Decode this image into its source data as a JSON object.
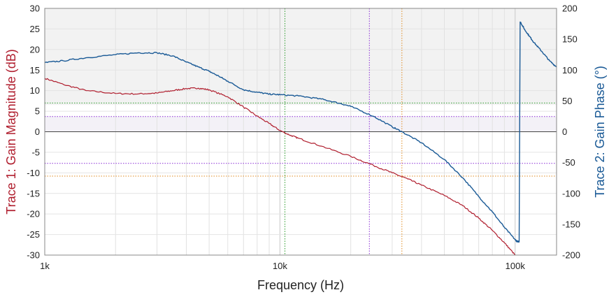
{
  "chart_data": {
    "type": "line",
    "xlabel": "Frequency (Hz)",
    "ylabel_left": "Trace 1: Gain Magnitude (dB)",
    "ylabel_right": "Trace 2: Gain Phase (°)",
    "xscale": "log",
    "xlim": [
      1000,
      150000
    ],
    "ylim_left": [
      -30,
      30
    ],
    "ylim_right": [
      -200,
      200
    ],
    "x_ticks": [
      {
        "value": 1000,
        "label": "1k"
      },
      {
        "value": 10000,
        "label": "10k"
      },
      {
        "value": 100000,
        "label": "100k"
      }
    ],
    "y_left_ticks": [
      {
        "value": 30,
        "label": "30"
      },
      {
        "value": 25,
        "label": "25"
      },
      {
        "value": 20,
        "label": "20"
      },
      {
        "value": 15,
        "label": "15"
      },
      {
        "value": 10,
        "label": "10"
      },
      {
        "value": 5,
        "label": "5"
      },
      {
        "value": 0,
        "label": "0"
      },
      {
        "value": -5,
        "label": "-5"
      },
      {
        "value": -10,
        "label": "-10"
      },
      {
        "value": -15,
        "label": "-15"
      },
      {
        "value": -20,
        "label": "-20"
      },
      {
        "value": -25,
        "label": "-25"
      },
      {
        "value": -30,
        "label": "-30"
      }
    ],
    "y_right_ticks": [
      {
        "value": 200,
        "label": "200"
      },
      {
        "value": 150,
        "label": "150"
      },
      {
        "value": 100,
        "label": "100"
      },
      {
        "value": 50,
        "label": "50"
      },
      {
        "value": 0,
        "label": "0"
      },
      {
        "value": -50,
        "label": "-50"
      },
      {
        "value": -100,
        "label": "-100"
      },
      {
        "value": -150,
        "label": "-150"
      },
      {
        "value": -200,
        "label": "-200"
      }
    ],
    "series": [
      {
        "color": "#b01e2e",
        "axis": "left",
        "points": [
          [
            1000,
            13
          ],
          [
            1200,
            11.5
          ],
          [
            1500,
            10
          ],
          [
            2000,
            9.3
          ],
          [
            2500,
            9.2
          ],
          [
            3000,
            9.4
          ],
          [
            3500,
            10
          ],
          [
            4000,
            10.5
          ],
          [
            4500,
            10.6
          ],
          [
            5000,
            10.2
          ],
          [
            6000,
            8.5
          ],
          [
            7000,
            6
          ],
          [
            8000,
            3.8
          ],
          [
            9000,
            2
          ],
          [
            10000,
            0.3
          ],
          [
            11000,
            -0.8
          ],
          [
            12000,
            -1.6
          ],
          [
            15000,
            -3.5
          ],
          [
            20000,
            -6
          ],
          [
            25000,
            -8.2
          ],
          [
            30000,
            -10
          ],
          [
            35000,
            -11.5
          ],
          [
            40000,
            -13
          ],
          [
            50000,
            -15.5
          ],
          [
            60000,
            -18
          ],
          [
            70000,
            -21
          ],
          [
            80000,
            -24
          ],
          [
            90000,
            -27
          ],
          [
            100000,
            -30
          ]
        ]
      },
      {
        "color": "#1a5a96",
        "axis": "right",
        "points": [
          [
            1000,
            112
          ],
          [
            1200,
            115
          ],
          [
            1500,
            120
          ],
          [
            2000,
            125
          ],
          [
            2500,
            128
          ],
          [
            3000,
            128
          ],
          [
            3500,
            123
          ],
          [
            4000,
            113
          ],
          [
            4500,
            105
          ],
          [
            5000,
            98
          ],
          [
            5500,
            90
          ],
          [
            6000,
            82
          ],
          [
            7000,
            68
          ],
          [
            8000,
            64
          ],
          [
            9000,
            61
          ],
          [
            10000,
            60
          ],
          [
            12000,
            58
          ],
          [
            15000,
            53
          ],
          [
            18000,
            46
          ],
          [
            20000,
            41
          ],
          [
            25000,
            25
          ],
          [
            30000,
            8
          ],
          [
            33000,
            0
          ],
          [
            40000,
            -18
          ],
          [
            50000,
            -45
          ],
          [
            60000,
            -75
          ],
          [
            70000,
            -105
          ],
          [
            80000,
            -130
          ],
          [
            90000,
            -155
          ],
          [
            100000,
            -175
          ],
          [
            102000,
            -178
          ],
          [
            104000,
            -178
          ],
          [
            105000,
            178
          ],
          [
            106000,
            176
          ],
          [
            110000,
            165
          ],
          [
            115000,
            155
          ],
          [
            120000,
            145
          ],
          [
            130000,
            130
          ],
          [
            140000,
            115
          ],
          [
            150000,
            105
          ]
        ]
      }
    ],
    "reference_lines": [
      {
        "orientation": "vertical",
        "value": 10500,
        "color": "#2e9e2e",
        "style": "dotted"
      },
      {
        "orientation": "vertical",
        "value": 24000,
        "color": "#8a2bd6",
        "style": "dotted"
      },
      {
        "orientation": "vertical",
        "value": 33000,
        "color": "#e08a1e",
        "style": "dotted"
      },
      {
        "orientation": "horizontal",
        "axis": "left",
        "value": 0,
        "color": "#444444",
        "style": "solid"
      },
      {
        "orientation": "horizontal",
        "axis": "left",
        "value": 7,
        "color": "#2e9e2e",
        "style": "dotted"
      },
      {
        "orientation": "horizontal",
        "axis": "left",
        "value": 3.7,
        "color": "#8a2bd6",
        "style": "dotted"
      },
      {
        "orientation": "horizontal",
        "axis": "left",
        "value": -7.7,
        "color": "#8a2bd6",
        "style": "dotted"
      },
      {
        "orientation": "horizontal",
        "axis": "left",
        "value": -10.8,
        "color": "#e08a1e",
        "style": "dotted"
      }
    ],
    "shaded_bands": [
      {
        "axis": "left",
        "from": 6.5,
        "to": 30,
        "color": "#f2f2f2"
      },
      {
        "axis": "left",
        "from": 0,
        "to": 3.7,
        "color": "#f3f1f7"
      }
    ],
    "grid": true,
    "legend": "none"
  }
}
